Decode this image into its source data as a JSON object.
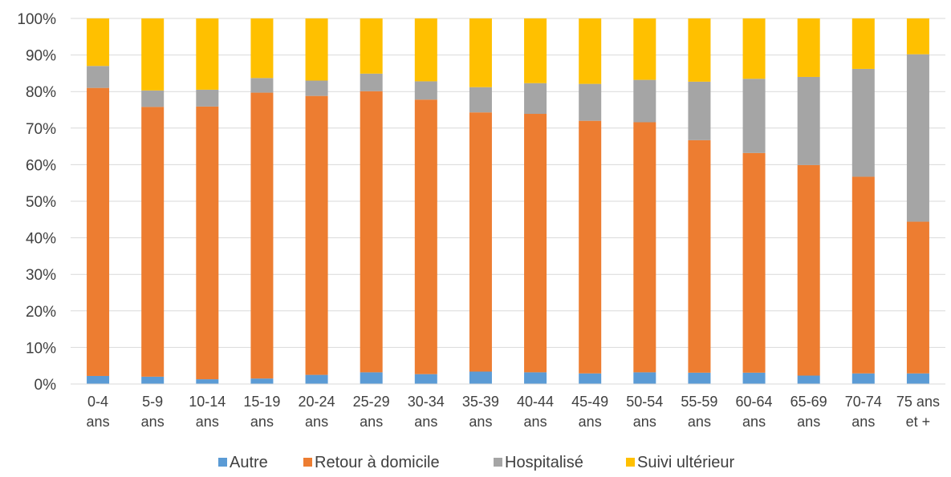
{
  "chart_data": {
    "type": "bar",
    "stacked": true,
    "percent": true,
    "categories": [
      [
        "0-4",
        "ans"
      ],
      [
        "5-9",
        "ans"
      ],
      [
        "10-14",
        "ans"
      ],
      [
        "15-19",
        "ans"
      ],
      [
        "20-24",
        "ans"
      ],
      [
        "25-29",
        "ans"
      ],
      [
        "30-34",
        "ans"
      ],
      [
        "35-39",
        "ans"
      ],
      [
        "40-44",
        "ans"
      ],
      [
        "45-49",
        "ans"
      ],
      [
        "50-54",
        "ans"
      ],
      [
        "55-59",
        "ans"
      ],
      [
        "60-64",
        "ans"
      ],
      [
        "65-69",
        "ans"
      ],
      [
        "70-74",
        "ans"
      ],
      [
        "75 ans",
        "et +"
      ]
    ],
    "series": [
      {
        "name": "Autre",
        "color": "#5B9BD5",
        "values": [
          2.2,
          2.0,
          1.3,
          1.5,
          2.5,
          3.2,
          2.7,
          3.4,
          3.2,
          2.9,
          3.2,
          3.1,
          3.1,
          2.3,
          2.9,
          2.9
        ]
      },
      {
        "name": "Retour à domicile",
        "color": "#ED7D31",
        "values": [
          78.8,
          73.8,
          74.6,
          78.2,
          76.3,
          76.9,
          75.1,
          70.9,
          70.7,
          69.1,
          68.4,
          63.6,
          60.1,
          57.6,
          53.8,
          41.5
        ]
      },
      {
        "name": "Hospitalisé",
        "color": "#A5A5A5",
        "values": [
          6.0,
          4.5,
          4.6,
          4.0,
          4.2,
          4.8,
          5.0,
          6.9,
          8.4,
          10.1,
          11.6,
          16.0,
          20.3,
          24.1,
          29.5,
          45.8
        ]
      },
      {
        "name": "Suivi ultérieur",
        "color": "#FFC000",
        "values": [
          13.0,
          19.7,
          19.5,
          16.3,
          17.0,
          15.1,
          17.2,
          18.8,
          17.7,
          17.9,
          16.8,
          17.3,
          16.5,
          16.0,
          13.8,
          9.8
        ]
      }
    ],
    "yticks": [
      "0%",
      "10%",
      "20%",
      "30%",
      "40%",
      "50%",
      "60%",
      "70%",
      "80%",
      "90%",
      "100%"
    ],
    "ylim": [
      0,
      100
    ],
    "grid": true,
    "legend_position": "bottom",
    "title": "",
    "xlabel": "",
    "ylabel": ""
  }
}
